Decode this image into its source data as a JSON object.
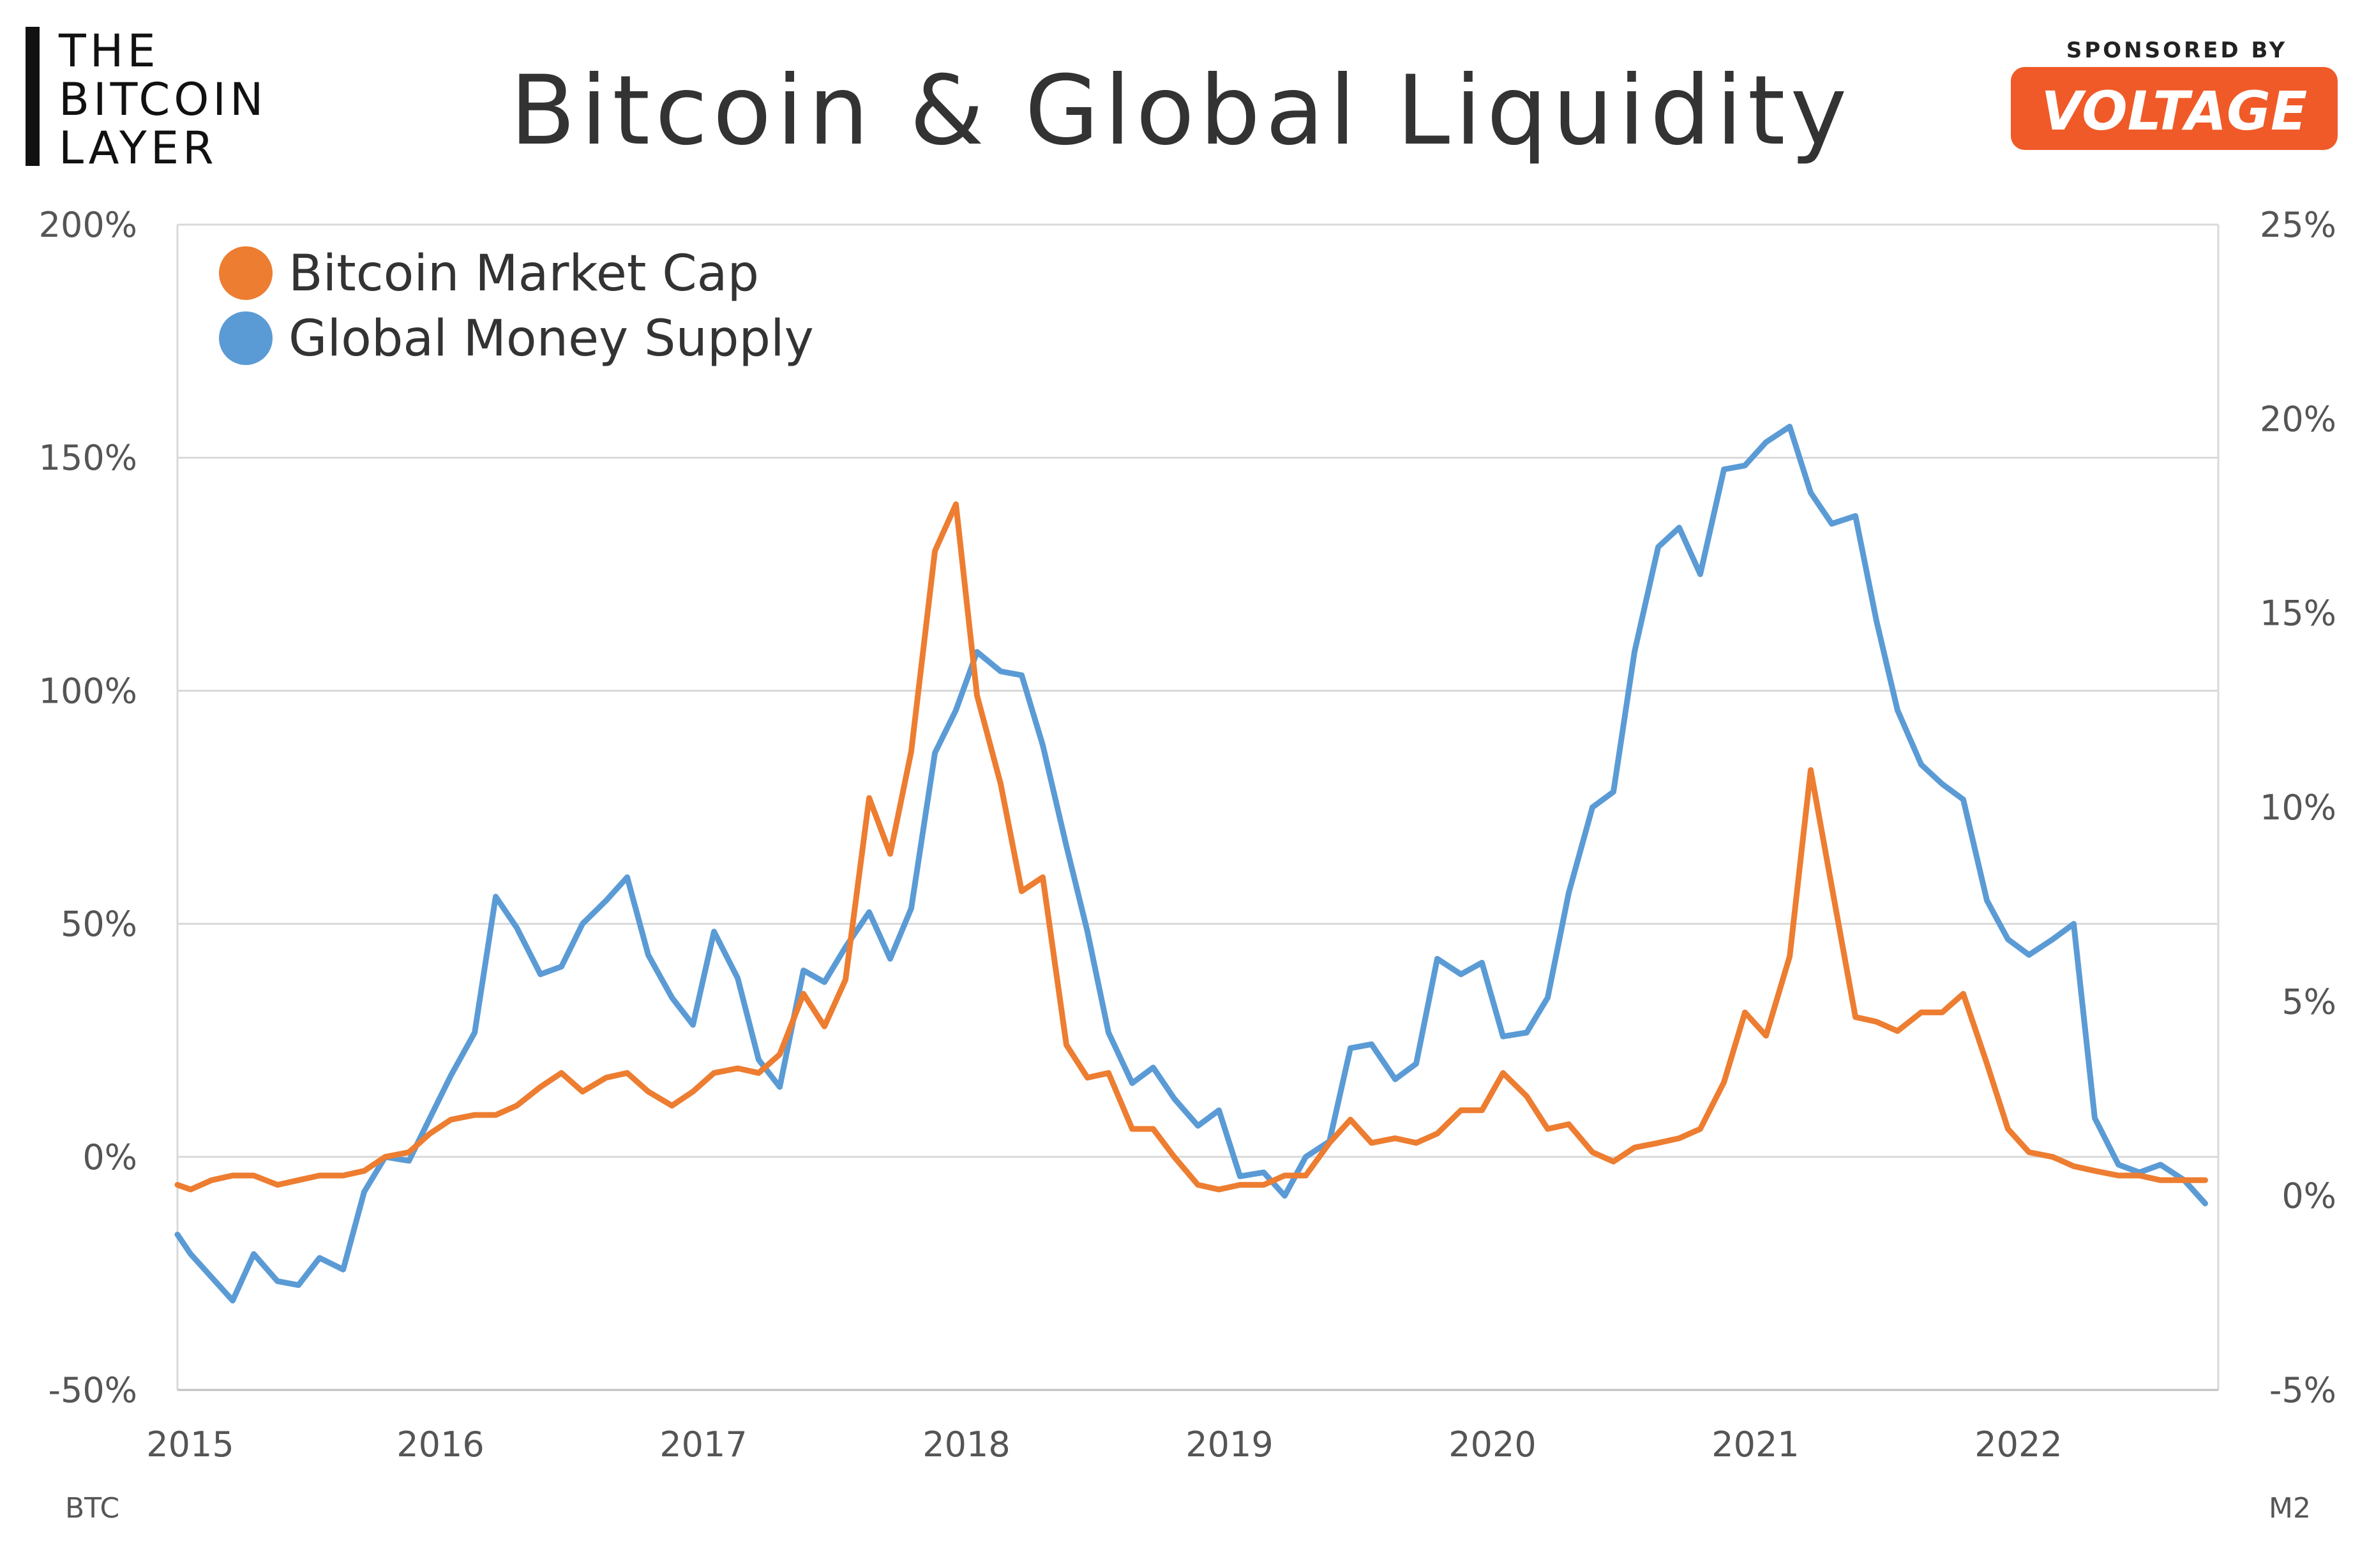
{
  "header": {
    "logo_line1": "THE",
    "logo_line2": "BITCOIN",
    "logo_line3": "LAYER",
    "sponsor_label": "SPONSORED BY",
    "sponsor_name": "VOLTAGE"
  },
  "colors": {
    "btc": "#ED7D31",
    "m2": "#5B9BD5",
    "sponsor_bg": "#F05A28",
    "grid": "#D9D9D9"
  },
  "chart_data": {
    "type": "line",
    "title": "Bitcoin & Global Liquidity",
    "legend_position": "top-left",
    "grid": true,
    "x_range": [
      2015.0,
      2022.75
    ],
    "x_ticks": [
      "2015",
      "2016",
      "2017",
      "2018",
      "2019",
      "2020",
      "2021",
      "2022"
    ],
    "left_axis": {
      "label": "BTC",
      "range": [
        -50,
        200
      ],
      "ticks": [
        "200%",
        "150%",
        "100%",
        "50%",
        "0%",
        "-50%"
      ]
    },
    "right_axis": {
      "label": "M2",
      "range": [
        -5,
        25
      ],
      "ticks": [
        "25%",
        "20%",
        "15%",
        "10%",
        "5%",
        "0%",
        "-5%"
      ]
    },
    "series": [
      {
        "name": "Bitcoin Market Cap",
        "axis": "left",
        "color": "#ED7D31",
        "x": [
          2015.0,
          2015.05,
          2015.13,
          2015.21,
          2015.29,
          2015.38,
          2015.46,
          2015.54,
          2015.63,
          2015.71,
          2015.79,
          2015.88,
          2015.96,
          2016.04,
          2016.13,
          2016.21,
          2016.29,
          2016.38,
          2016.46,
          2016.54,
          2016.63,
          2016.71,
          2016.79,
          2016.88,
          2016.96,
          2017.04,
          2017.13,
          2017.21,
          2017.29,
          2017.38,
          2017.46,
          2017.54,
          2017.63,
          2017.71,
          2017.79,
          2017.88,
          2017.96,
          2018.04,
          2018.13,
          2018.21,
          2018.29,
          2018.38,
          2018.46,
          2018.54,
          2018.63,
          2018.71,
          2018.79,
          2018.88,
          2018.96,
          2019.04,
          2019.13,
          2019.21,
          2019.29,
          2019.38,
          2019.46,
          2019.54,
          2019.63,
          2019.71,
          2019.79,
          2019.88,
          2019.96,
          2020.04,
          2020.13,
          2020.21,
          2020.29,
          2020.38,
          2020.46,
          2020.54,
          2020.63,
          2020.71,
          2020.79,
          2020.88,
          2020.96,
          2021.04,
          2021.13,
          2021.21,
          2021.29,
          2021.38,
          2021.46,
          2021.54,
          2021.63,
          2021.71,
          2021.79,
          2021.88,
          2021.96,
          2022.04,
          2022.13,
          2022.21,
          2022.29,
          2022.38,
          2022.46,
          2022.54,
          2022.63,
          2022.71
        ],
        "y": [
          -6,
          -7,
          -5,
          -4,
          -4,
          -6,
          -5,
          -4,
          -4,
          -3,
          0,
          1,
          5,
          8,
          9,
          9,
          11,
          15,
          18,
          14,
          17,
          18,
          14,
          11,
          14,
          18,
          19,
          18,
          22,
          35,
          28,
          38,
          77,
          65,
          87,
          130,
          140,
          99,
          80,
          57,
          60,
          24,
          17,
          18,
          6,
          6,
          0,
          -6,
          -7,
          -6,
          -6,
          -4,
          -4,
          3,
          8,
          3,
          4,
          3,
          5,
          10,
          10,
          18,
          13,
          6,
          7,
          1,
          -1,
          2,
          3,
          4,
          6,
          16,
          31,
          26,
          43,
          83,
          58,
          30,
          29,
          27,
          31,
          31,
          35,
          20,
          6,
          1,
          0,
          -2,
          -3,
          -4,
          -4,
          -5,
          -5,
          -5
        ]
      },
      {
        "name": "Global Money Supply",
        "axis": "right",
        "color": "#5B9BD5",
        "x": [
          2015.0,
          2015.05,
          2015.13,
          2015.21,
          2015.29,
          2015.38,
          2015.46,
          2015.54,
          2015.63,
          2015.71,
          2015.79,
          2015.88,
          2015.96,
          2016.04,
          2016.13,
          2016.21,
          2016.29,
          2016.38,
          2016.46,
          2016.54,
          2016.63,
          2016.71,
          2016.79,
          2016.88,
          2016.96,
          2017.04,
          2017.13,
          2017.21,
          2017.29,
          2017.38,
          2017.46,
          2017.54,
          2017.63,
          2017.71,
          2017.79,
          2017.88,
          2017.96,
          2018.04,
          2018.13,
          2018.21,
          2018.29,
          2018.38,
          2018.46,
          2018.54,
          2018.63,
          2018.71,
          2018.79,
          2018.88,
          2018.96,
          2019.04,
          2019.13,
          2019.21,
          2019.29,
          2019.38,
          2019.46,
          2019.54,
          2019.63,
          2019.71,
          2019.79,
          2019.88,
          2019.96,
          2020.04,
          2020.13,
          2020.21,
          2020.29,
          2020.38,
          2020.46,
          2020.54,
          2020.63,
          2020.71,
          2020.79,
          2020.88,
          2020.96,
          2021.04,
          2021.13,
          2021.21,
          2021.29,
          2021.38,
          2021.46,
          2021.54,
          2021.63,
          2021.71,
          2021.79,
          2021.88,
          2021.96,
          2022.04,
          2022.13,
          2022.21,
          2022.29,
          2022.38,
          2022.46,
          2022.54,
          2022.63,
          2022.71
        ],
        "y": [
          -1.0,
          -1.5,
          -2.1,
          -2.7,
          -1.5,
          -2.2,
          -2.3,
          -1.6,
          -1.9,
          0.1,
          1.0,
          0.9,
          2.0,
          3.1,
          4.2,
          7.7,
          6.9,
          5.7,
          5.9,
          7.0,
          7.6,
          8.2,
          6.2,
          5.1,
          4.4,
          6.8,
          5.6,
          3.5,
          2.8,
          5.8,
          5.5,
          6.4,
          7.3,
          6.1,
          7.4,
          11.4,
          12.5,
          14.0,
          13.5,
          13.4,
          11.6,
          9.0,
          6.8,
          4.2,
          2.9,
          3.3,
          2.5,
          1.8,
          2.2,
          0.5,
          0.6,
          0.0,
          1.0,
          1.4,
          3.8,
          3.9,
          3.0,
          3.4,
          6.1,
          5.7,
          6.0,
          4.1,
          4.2,
          5.1,
          7.8,
          10.0,
          10.4,
          14.0,
          16.7,
          17.2,
          16.0,
          18.7,
          18.8,
          19.4,
          19.8,
          18.1,
          17.3,
          17.5,
          14.8,
          12.5,
          11.1,
          10.6,
          10.2,
          7.6,
          6.6,
          6.2,
          6.6,
          7.0,
          2.0,
          0.8,
          0.6,
          0.8,
          0.4,
          -0.2
        ]
      }
    ]
  }
}
